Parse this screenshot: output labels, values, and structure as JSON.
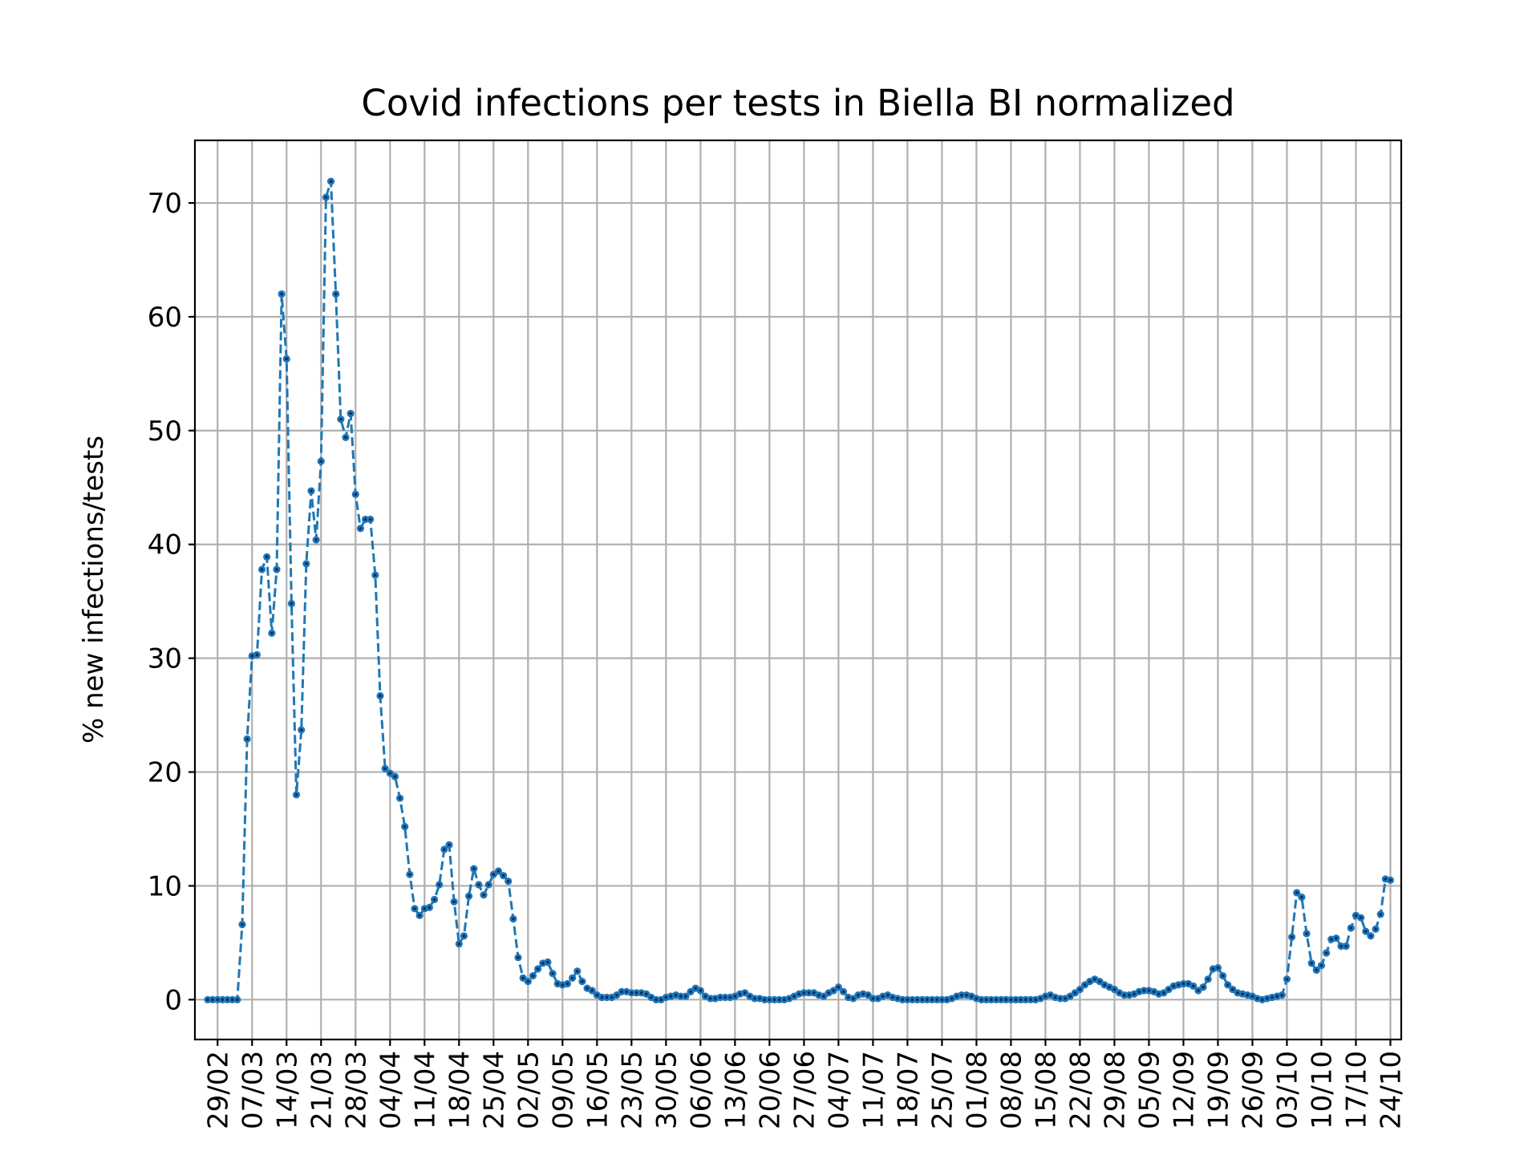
{
  "chart_data": {
    "type": "line",
    "title": "Covid infections per tests in Biella BI normalized",
    "ylabel": "% new infections/tests",
    "xlabel": "",
    "grid": true,
    "colors": {
      "line": "#1f77b4",
      "marker": "#1f77b4",
      "marker_center": "#0a2a6e"
    },
    "ylim": [
      -3.5,
      75.5
    ],
    "yticks": [
      0,
      10,
      20,
      30,
      40,
      50,
      60,
      70
    ],
    "xlim": [
      -2.6,
      242.2
    ],
    "xticks": [
      {
        "day": 2,
        "label": "29/02"
      },
      {
        "day": 9,
        "label": "07/03"
      },
      {
        "day": 16,
        "label": "14/03"
      },
      {
        "day": 23,
        "label": "21/03"
      },
      {
        "day": 30,
        "label": "28/03"
      },
      {
        "day": 37,
        "label": "04/04"
      },
      {
        "day": 44,
        "label": "11/04"
      },
      {
        "day": 51,
        "label": "18/04"
      },
      {
        "day": 58,
        "label": "25/04"
      },
      {
        "day": 65,
        "label": "02/05"
      },
      {
        "day": 72,
        "label": "09/05"
      },
      {
        "day": 79,
        "label": "16/05"
      },
      {
        "day": 86,
        "label": "23/05"
      },
      {
        "day": 93,
        "label": "30/05"
      },
      {
        "day": 100,
        "label": "06/06"
      },
      {
        "day": 107,
        "label": "13/06"
      },
      {
        "day": 114,
        "label": "20/06"
      },
      {
        "day": 121,
        "label": "27/06"
      },
      {
        "day": 128,
        "label": "04/07"
      },
      {
        "day": 135,
        "label": "11/07"
      },
      {
        "day": 142,
        "label": "18/07"
      },
      {
        "day": 149,
        "label": "25/07"
      },
      {
        "day": 156,
        "label": "01/08"
      },
      {
        "day": 163,
        "label": "08/08"
      },
      {
        "day": 170,
        "label": "15/08"
      },
      {
        "day": 177,
        "label": "22/08"
      },
      {
        "day": 184,
        "label": "29/08"
      },
      {
        "day": 191,
        "label": "05/09"
      },
      {
        "day": 198,
        "label": "12/09"
      },
      {
        "day": 205,
        "label": "19/09"
      },
      {
        "day": 212,
        "label": "26/09"
      },
      {
        "day": 219,
        "label": "03/10"
      },
      {
        "day": 226,
        "label": "10/10"
      },
      {
        "day": 233,
        "label": "17/10"
      },
      {
        "day": 240,
        "label": "24/10"
      }
    ],
    "series": [
      {
        "x_start_day": 0,
        "values": [
          0,
          0,
          0,
          0,
          0,
          0,
          0,
          6.6,
          22.9,
          30.2,
          30.3,
          37.8,
          38.9,
          32.2,
          37.8,
          62.0,
          56.3,
          34.8,
          18.0,
          23.7,
          38.3,
          44.7,
          40.4,
          47.3,
          70.5,
          71.9,
          62.0,
          51.0,
          49.4,
          51.5,
          44.4,
          41.4,
          42.2,
          42.2,
          37.3,
          26.7,
          20.3,
          19.9,
          19.6,
          17.7,
          15.2,
          11.0,
          8.0,
          7.4,
          8.0,
          8.1,
          8.8,
          10.1,
          13.2,
          13.6,
          8.6,
          4.9,
          5.6,
          9.1,
          11.5,
          10.1,
          9.2,
          10.1,
          11.0,
          11.3,
          10.9,
          10.4,
          7.1,
          3.7,
          1.9,
          1.6,
          2.1,
          2.7,
          3.2,
          3.3,
          2.3,
          1.4,
          1.3,
          1.4,
          1.9,
          2.5,
          1.6,
          1.0,
          0.8,
          0.4,
          0.2,
          0.2,
          0.2,
          0.4,
          0.7,
          0.7,
          0.6,
          0.6,
          0.6,
          0.5,
          0.2,
          0.0,
          0.0,
          0.2,
          0.3,
          0.4,
          0.3,
          0.3,
          0.7,
          1.0,
          0.8,
          0.3,
          0.1,
          0.1,
          0.2,
          0.2,
          0.2,
          0.3,
          0.5,
          0.6,
          0.3,
          0.1,
          0.1,
          0.0,
          0.0,
          0.0,
          0.0,
          0.0,
          0.1,
          0.3,
          0.5,
          0.6,
          0.6,
          0.6,
          0.4,
          0.3,
          0.6,
          0.8,
          1.1,
          0.7,
          0.2,
          0.1,
          0.4,
          0.5,
          0.4,
          0.1,
          0.1,
          0.3,
          0.4,
          0.2,
          0.1,
          0.0,
          0.0,
          0.0,
          0.0,
          0.0,
          0.0,
          0.0,
          0.0,
          0.0,
          0.0,
          0.1,
          0.3,
          0.4,
          0.4,
          0.3,
          0.1,
          0.0,
          0.0,
          0.0,
          0.0,
          0.0,
          0.0,
          0.0,
          0.0,
          0.0,
          0.0,
          0.0,
          0.0,
          0.1,
          0.3,
          0.4,
          0.2,
          0.1,
          0.1,
          0.3,
          0.6,
          0.9,
          1.3,
          1.6,
          1.8,
          1.6,
          1.3,
          1.1,
          0.9,
          0.6,
          0.4,
          0.4,
          0.5,
          0.7,
          0.8,
          0.8,
          0.7,
          0.5,
          0.6,
          0.9,
          1.2,
          1.3,
          1.4,
          1.4,
          1.2,
          0.8,
          1.1,
          1.8,
          2.7,
          2.8,
          2.1,
          1.3,
          0.9,
          0.6,
          0.5,
          0.4,
          0.3,
          0.1,
          0.0,
          0.1,
          0.2,
          0.3,
          0.4,
          1.8,
          5.5,
          9.4,
          9.0,
          5.8,
          3.2,
          2.6,
          3.0,
          4.1,
          5.3,
          5.4,
          4.7,
          4.7,
          6.3,
          7.4,
          7.2,
          6.0,
          5.6,
          6.2,
          7.5,
          10.6,
          10.5
        ]
      }
    ]
  }
}
